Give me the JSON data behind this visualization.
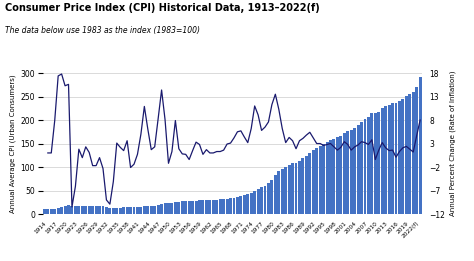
{
  "title": "Consumer Price Index (CPI) Historical Data, 1913–2022(f)",
  "subtitle": "The data below use 1983 as the index (1983=100)",
  "ylabel_left": "Annual Average CPI (Urban Consumers)",
  "ylabel_right": "Annual Percent Change (Rate of Inflation)",
  "background_color": "#ffffff",
  "bar_color": "#4472C4",
  "line_color": "#1a1a6e",
  "years": [
    1913,
    1914,
    1915,
    1916,
    1917,
    1918,
    1919,
    1920,
    1921,
    1922,
    1923,
    1924,
    1925,
    1926,
    1927,
    1928,
    1929,
    1930,
    1931,
    1932,
    1933,
    1934,
    1935,
    1936,
    1937,
    1938,
    1939,
    1940,
    1941,
    1942,
    1943,
    1944,
    1945,
    1946,
    1947,
    1948,
    1949,
    1950,
    1951,
    1952,
    1953,
    1954,
    1955,
    1956,
    1957,
    1958,
    1959,
    1960,
    1961,
    1962,
    1963,
    1964,
    1965,
    1966,
    1967,
    1968,
    1969,
    1970,
    1971,
    1972,
    1973,
    1974,
    1975,
    1976,
    1977,
    1978,
    1979,
    1980,
    1981,
    1982,
    1983,
    1984,
    1985,
    1986,
    1987,
    1988,
    1989,
    1990,
    1991,
    1992,
    1993,
    1994,
    1995,
    1996,
    1997,
    1998,
    1999,
    2000,
    2001,
    2002,
    2003,
    2004,
    2005,
    2006,
    2007,
    2008,
    2009,
    2010,
    2011,
    2012,
    2013,
    2014,
    2015,
    2016,
    2017,
    2018,
    2019,
    2020,
    2021,
    2022
  ],
  "cpi": [
    9.9,
    10.0,
    10.1,
    10.9,
    12.8,
    15.0,
    17.3,
    20.0,
    17.9,
    16.8,
    17.1,
    17.1,
    17.5,
    17.7,
    17.4,
    17.1,
    17.1,
    16.7,
    15.2,
    13.7,
    13.0,
    13.4,
    13.7,
    13.9,
    14.4,
    14.1,
    13.9,
    14.0,
    14.7,
    16.3,
    17.3,
    17.6,
    18.0,
    19.5,
    22.3,
    24.1,
    23.8,
    24.1,
    26.0,
    26.5,
    26.7,
    26.9,
    26.8,
    27.2,
    28.1,
    28.9,
    29.1,
    29.6,
    29.9,
    30.2,
    30.6,
    31.0,
    31.5,
    32.4,
    33.4,
    34.8,
    36.7,
    38.8,
    40.5,
    41.8,
    44.4,
    49.3,
    53.8,
    56.9,
    60.6,
    65.2,
    72.6,
    82.4,
    90.9,
    96.5,
    99.6,
    103.9,
    107.6,
    109.6,
    113.6,
    118.3,
    124.0,
    130.7,
    136.2,
    140.3,
    144.5,
    148.2,
    152.4,
    156.9,
    160.5,
    163.0,
    166.6,
    172.2,
    177.1,
    179.9,
    184.0,
    188.9,
    195.3,
    201.6,
    207.3,
    215.3,
    214.5,
    218.1,
    224.9,
    229.6,
    232.9,
    236.7,
    237.0,
    240.0,
    245.1,
    251.1,
    255.7,
    258.8,
    270.9,
    292.7
  ],
  "pct_change": [
    null,
    1.0,
    1.0,
    7.9,
    17.4,
    17.8,
    15.3,
    15.6,
    -10.5,
    -6.1,
    1.8,
    0.0,
    2.3,
    1.1,
    -1.7,
    -1.7,
    0.0,
    -2.3,
    -9.0,
    -9.9,
    -5.1,
    3.1,
    2.2,
    1.5,
    3.6,
    -2.1,
    -1.4,
    0.7,
    5.0,
    10.9,
    6.1,
    1.7,
    2.3,
    8.3,
    14.4,
    8.1,
    -1.2,
    1.3,
    7.9,
    1.9,
    0.8,
    0.7,
    -0.4,
    1.5,
    3.3,
    2.8,
    0.7,
    1.7,
    1.0,
    1.0,
    1.3,
    1.3,
    1.6,
    2.9,
    3.1,
    4.2,
    5.5,
    5.7,
    4.4,
    3.2,
    6.2,
    11.0,
    9.1,
    5.8,
    6.5,
    7.6,
    11.3,
    13.5,
    10.3,
    6.2,
    3.2,
    4.3,
    3.6,
    1.9,
    3.6,
    4.1,
    4.8,
    5.4,
    4.2,
    3.0,
    3.0,
    2.6,
    2.8,
    3.0,
    2.3,
    1.6,
    2.2,
    3.4,
    2.8,
    1.6,
    2.3,
    2.7,
    3.4,
    3.2,
    2.8,
    3.8,
    -0.4,
    1.6,
    3.2,
    2.1,
    1.5,
    1.6,
    0.1,
    1.3,
    2.1,
    2.4,
    1.8,
    1.2,
    4.7,
    8.0
  ],
  "ylim_left": [
    0,
    300
  ],
  "ylim_right": [
    -12,
    18
  ],
  "yticks_left": [
    0,
    50,
    100,
    150,
    200,
    250,
    300
  ],
  "yticks_right": [
    -12,
    -7,
    -2,
    3,
    8,
    13,
    18
  ],
  "xtick_labels": [
    "1914",
    "1917",
    "1920",
    "1923",
    "1926",
    "1929",
    "1932",
    "1935",
    "1938",
    "1941",
    "1944",
    "1947",
    "1950",
    "1953",
    "1956",
    "1959",
    "1962",
    "1965",
    "1968",
    "1971",
    "1974",
    "1977",
    "1980",
    "1983",
    "1986",
    "1989",
    "1992",
    "1995",
    "1998",
    "2001",
    "2004",
    "2007",
    "2010",
    "2013",
    "2016",
    "2019",
    "2022(f)"
  ],
  "xtick_positions": [
    1914,
    1917,
    1920,
    1923,
    1926,
    1929,
    1932,
    1935,
    1938,
    1941,
    1944,
    1947,
    1950,
    1953,
    1956,
    1959,
    1962,
    1965,
    1968,
    1971,
    1974,
    1977,
    1980,
    1983,
    1986,
    1989,
    1992,
    1995,
    1998,
    2001,
    2004,
    2007,
    2010,
    2013,
    2016,
    2019,
    2022
  ]
}
